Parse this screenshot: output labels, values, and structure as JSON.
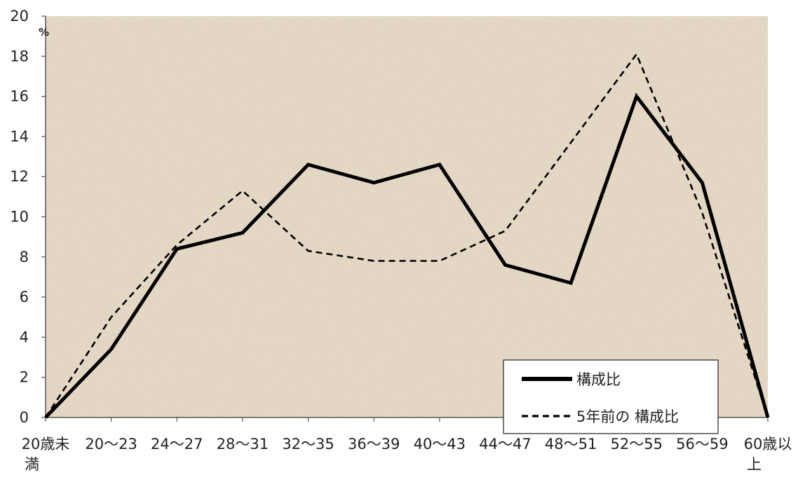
{
  "chart_data": {
    "type": "line",
    "unit_label": "%",
    "categories": [
      "20歳未満",
      "20～23",
      "24～27",
      "28～31",
      "32～35",
      "36～39",
      "40～43",
      "44～47",
      "48～51",
      "52～55",
      "56～59",
      "60歳以上"
    ],
    "category_label_lines": [
      [
        "20歳未",
        "満"
      ],
      [
        "20～23"
      ],
      [
        "24～27"
      ],
      [
        "28～31"
      ],
      [
        "32～35"
      ],
      [
        "36～39"
      ],
      [
        "40～43"
      ],
      [
        "44～47"
      ],
      [
        "48～51"
      ],
      [
        "52～55"
      ],
      [
        "56～59"
      ],
      [
        "60歳以",
        "上"
      ]
    ],
    "ylim": [
      0,
      20
    ],
    "yticks": [
      0,
      2,
      4,
      6,
      8,
      10,
      12,
      14,
      16,
      18,
      20
    ],
    "series": [
      {
        "name": "構成比",
        "style": "solid",
        "color": "#000000",
        "values": [
          0,
          3.4,
          8.4,
          9.2,
          12.6,
          11.7,
          12.6,
          7.6,
          6.7,
          16.0,
          11.7,
          0
        ]
      },
      {
        "name": "5年前の 構成比",
        "style": "dashed",
        "color": "#000000",
        "values": [
          0,
          5.0,
          8.6,
          11.3,
          8.3,
          7.8,
          7.8,
          9.3,
          13.7,
          18.1,
          10.2,
          0
        ]
      }
    ],
    "legend_position": "bottom-right",
    "plot_background": "#e5d8c5",
    "grid": false
  }
}
